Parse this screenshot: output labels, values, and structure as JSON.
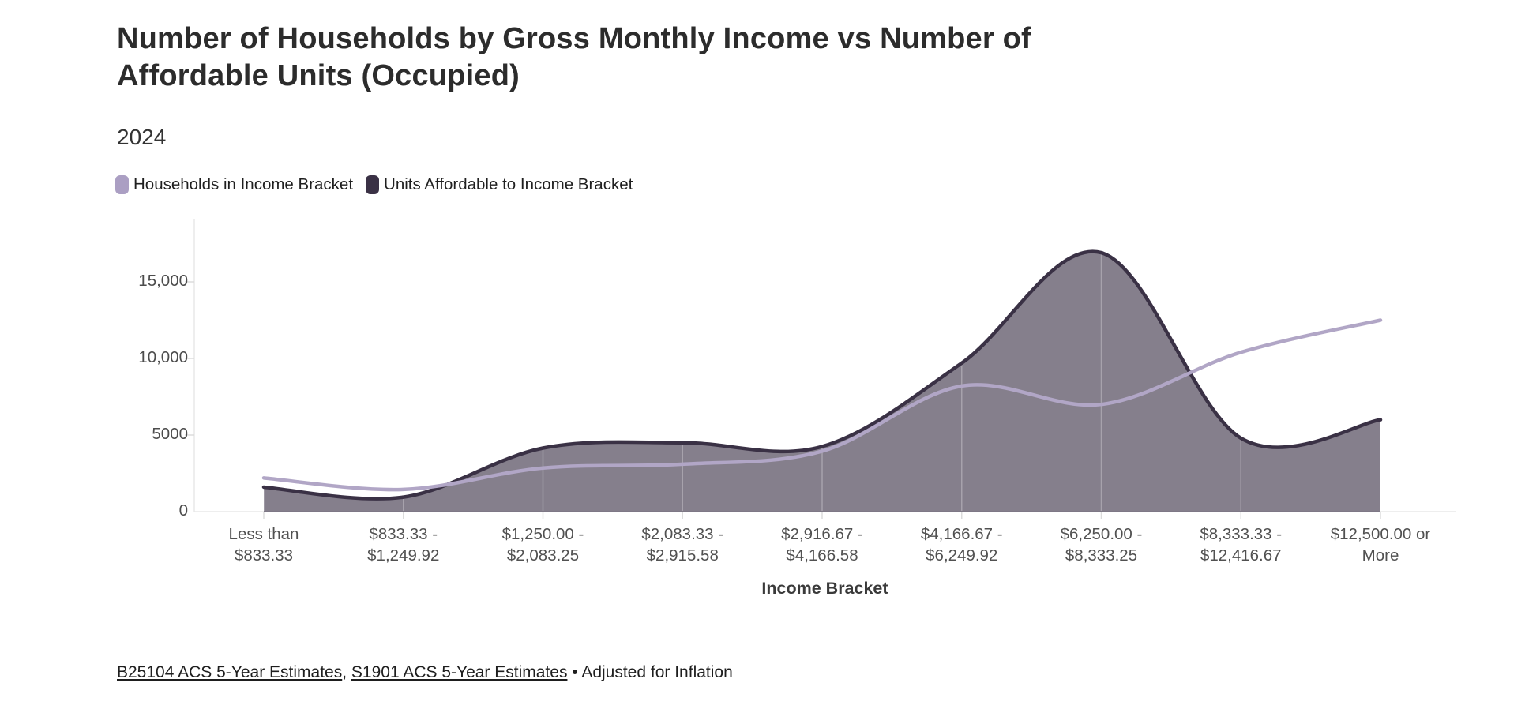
{
  "header": {
    "title": "Number of Households by Gross Monthly Income vs Number of\nAffordable Units (Occupied)",
    "subtitle": "2024"
  },
  "legend": {
    "items": [
      {
        "label": "Households in Income Bracket",
        "color": "#ab9fc3"
      },
      {
        "label": "Units Affordable to Income Bracket",
        "color": "#3a3145"
      }
    ]
  },
  "chart_data": {
    "type": "area",
    "title": "Number of Households by Gross Monthly Income vs Number of Affordable Units (Occupied)",
    "subtitle": "2024",
    "xlabel": "Income Bracket",
    "ylabel": "",
    "ylim": [
      0,
      17500
    ],
    "yticks": [
      0,
      5000,
      10000,
      15000
    ],
    "ytick_labels": [
      "0",
      "5000",
      "10,000",
      "15,000"
    ],
    "grid": false,
    "legend_position": "top",
    "categories": [
      "Less than\n$833.33",
      "$833.33 -\n$1,249.92",
      "$1,250.00 -\n$2,083.25",
      "$2,083.33 -\n$2,915.58",
      "$2,916.67 -\n$4,166.58",
      "$4,166.67 -\n$6,249.92",
      "$6,250.00 -\n$8,333.25",
      "$8,333.33 -\n$12,416.67",
      "$12,500.00 or\nMore"
    ],
    "series": [
      {
        "name": "Households in Income Bracket",
        "type": "line",
        "color": "#b1a6c6",
        "values": [
          2200,
          1450,
          2850,
          3100,
          3950,
          8200,
          7000,
          10400,
          12500
        ]
      },
      {
        "name": "Units Affordable to Income Bracket",
        "type": "area",
        "color": "#3a3145",
        "fill": "rgba(58,49,69,0.62)",
        "values": [
          1600,
          950,
          4150,
          4500,
          4250,
          9700,
          16900,
          4800,
          6000
        ]
      }
    ]
  },
  "axis": {
    "x_title": "Income Bracket"
  },
  "footer": {
    "link1": "B25104 ACS 5-Year Estimates",
    "separator": ", ",
    "link2": "S1901 ACS 5-Year Estimates",
    "suffix": " • Adjusted for Inflation"
  }
}
